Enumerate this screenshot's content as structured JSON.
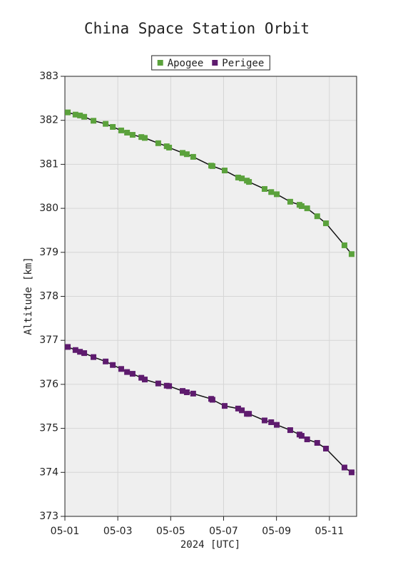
{
  "chart_data": {
    "type": "line",
    "title": "China Space Station Orbit",
    "xlabel": "2024 [UTC]",
    "ylabel": "Altitude [km]",
    "x": [
      1.11,
      1.4,
      1.57,
      1.73,
      2.08,
      2.54,
      2.81,
      3.13,
      3.35,
      3.56,
      3.89,
      4.02,
      4.53,
      4.85,
      4.94,
      5.45,
      5.61,
      5.85,
      6.53,
      6.58,
      7.04,
      7.55,
      7.69,
      7.88,
      7.96,
      8.55,
      8.8,
      9.01,
      9.52,
      9.87,
      9.95,
      10.16,
      10.54,
      10.87,
      11.57,
      11.84
    ],
    "series": [
      {
        "name": "Apogee",
        "color": "#5ba23c",
        "values": [
          382.18,
          382.13,
          382.11,
          382.08,
          381.99,
          381.92,
          381.85,
          381.77,
          381.72,
          381.67,
          381.62,
          381.6,
          381.48,
          381.41,
          381.38,
          381.26,
          381.23,
          381.17,
          380.97,
          380.96,
          380.86,
          380.7,
          380.68,
          380.63,
          380.6,
          380.44,
          380.37,
          380.32,
          380.15,
          380.08,
          380.05,
          380.0,
          379.82,
          379.66,
          379.16,
          378.96
        ]
      },
      {
        "name": "Perigee",
        "color": "#5e1b6e",
        "values": [
          376.85,
          376.78,
          376.74,
          376.71,
          376.62,
          376.52,
          376.44,
          376.35,
          376.28,
          376.24,
          376.15,
          376.11,
          376.02,
          375.97,
          375.96,
          375.85,
          375.82,
          375.79,
          375.67,
          375.65,
          375.51,
          375.45,
          375.41,
          375.33,
          375.33,
          375.18,
          375.14,
          375.08,
          374.96,
          374.86,
          374.83,
          374.75,
          374.67,
          374.54,
          374.11,
          374.0
        ]
      }
    ],
    "xlim": [
      1,
      12.03
    ],
    "xticks": [
      {
        "value": 1,
        "label": "05-01"
      },
      {
        "value": 3,
        "label": "05-03"
      },
      {
        "value": 5,
        "label": "05-05"
      },
      {
        "value": 7,
        "label": "05-07"
      },
      {
        "value": 9,
        "label": "05-09"
      },
      {
        "value": 11,
        "label": "05-11"
      }
    ],
    "ylim": [
      373,
      383
    ],
    "yticks": [
      373,
      374,
      375,
      376,
      377,
      378,
      379,
      380,
      381,
      382,
      383
    ],
    "grid": true,
    "legend": "top"
  }
}
